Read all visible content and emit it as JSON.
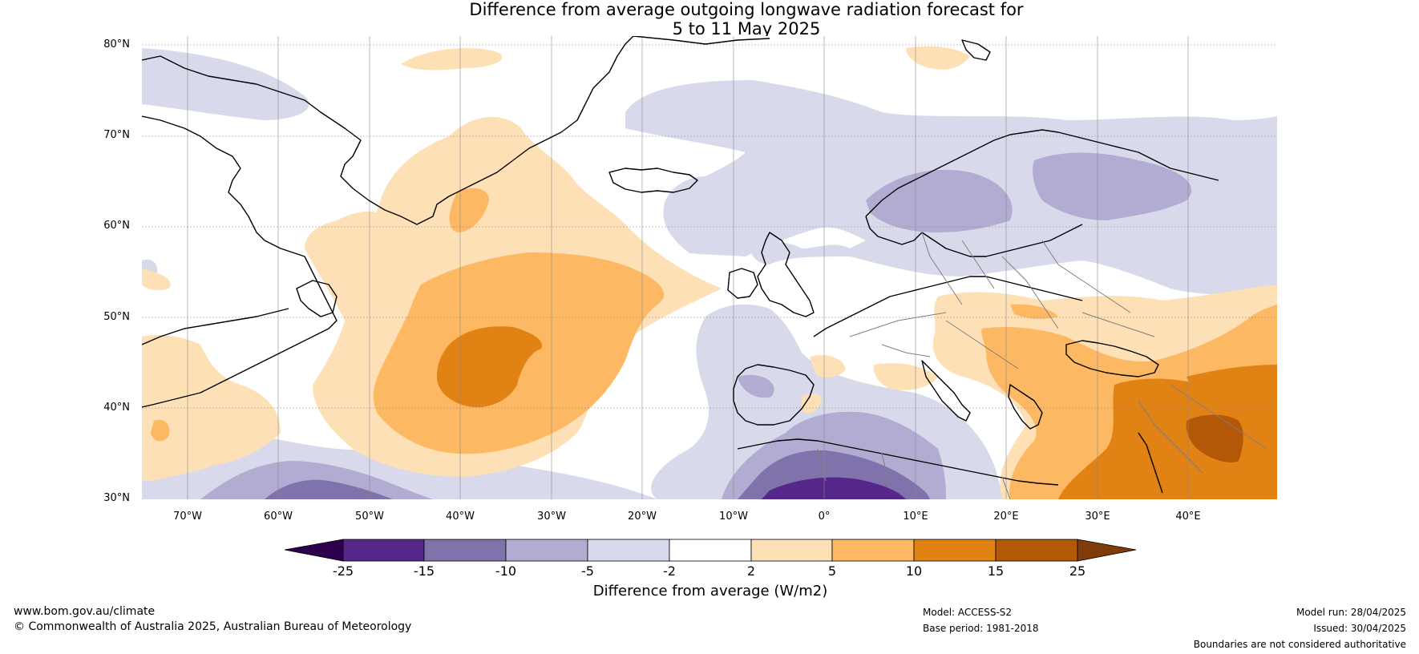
{
  "title": {
    "line1": "Difference from average outgoing longwave radiation forecast for",
    "line2": "5 to 11 May 2025"
  },
  "map": {
    "region": "North Atlantic and Europe",
    "latitude_labels": [
      "80°N",
      "70°N",
      "60°N",
      "50°N",
      "40°N",
      "30°N"
    ],
    "longitude_labels": [
      "70°W",
      "60°W",
      "50°W",
      "40°W",
      "30°W",
      "20°W",
      "10°W",
      "0°",
      "10°E",
      "20°E",
      "30°E",
      "40°E"
    ],
    "anomaly_regions": [
      {
        "area": "Central North Atlantic",
        "category": "10 to 15"
      },
      {
        "area": "North Atlantic south of Greenland",
        "category": "2 to 10"
      },
      {
        "area": "Turkey and Middle East",
        "category": "15 to 25"
      },
      {
        "area": "Eastern Mediterranean",
        "category": "5 to 10"
      },
      {
        "area": "Scandinavia and Norwegian Sea",
        "category": "-10 to -2"
      },
      {
        "area": "North Africa and Sahara",
        "category": "-25 to -15"
      },
      {
        "area": "Subtropical western Atlantic",
        "category": "-15 to -5"
      }
    ]
  },
  "colorbar": {
    "colors": [
      "#2d004b",
      "#542788",
      "#8073ac",
      "#b2abd2",
      "#d8daeb",
      "#ffffff",
      "#fee0b6",
      "#fdb863",
      "#e08214",
      "#b35806",
      "#7f3b08"
    ],
    "tick_labels": [
      "-25",
      "-15",
      "-10",
      "-5",
      "-2",
      "2",
      "5",
      "10",
      "15",
      "25"
    ],
    "title": "Difference from average (W/m2)"
  },
  "footer": {
    "website": "www.bom.gov.au/climate",
    "copyright": "© Commonwealth of Australia 2025, Australian Bureau of Meteorology",
    "model": "Model: ACCESS-S2",
    "base_period": "Base period: 1981-2018",
    "model_run": "Model run: 28/04/2025",
    "issued": "Issued: 30/04/2025",
    "disclaimer": "Boundaries are not considered authoritative"
  }
}
